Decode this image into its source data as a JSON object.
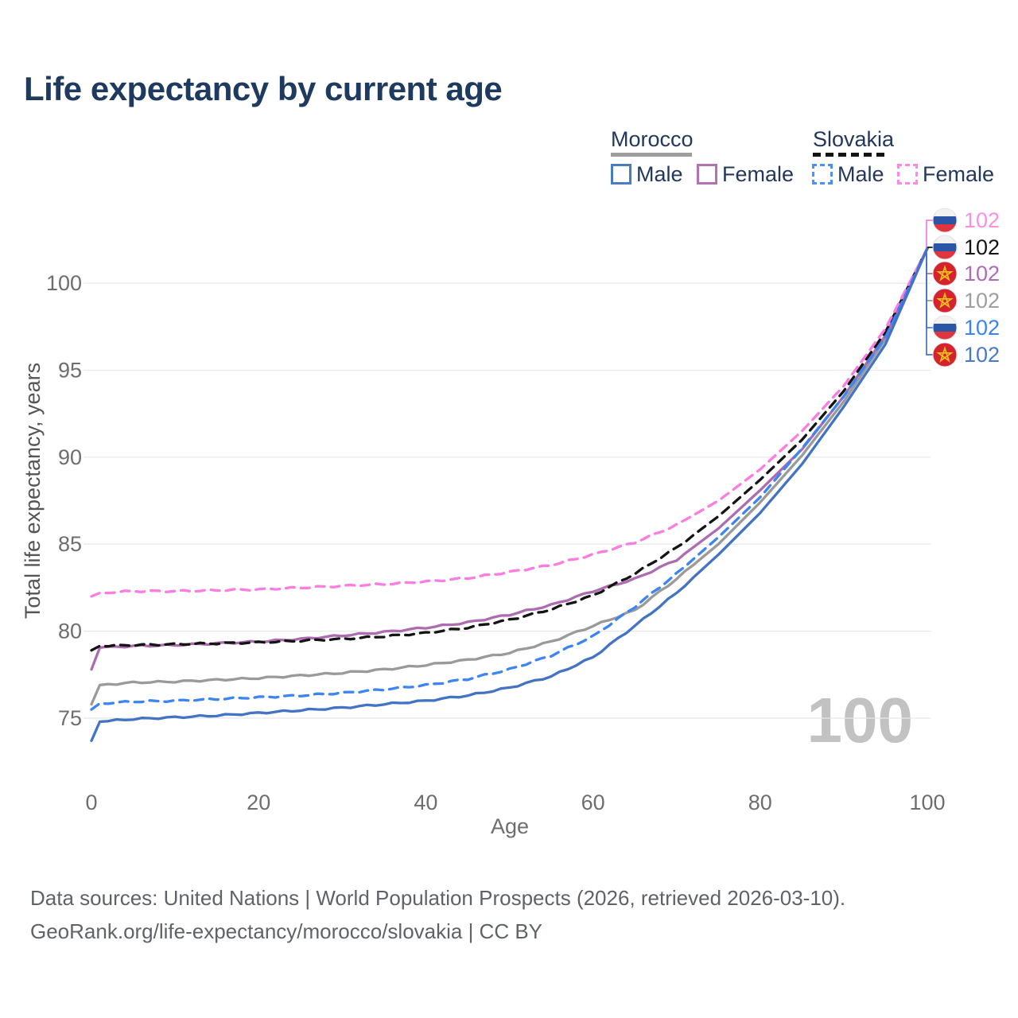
{
  "title": "Life expectancy by current age",
  "legend": {
    "groups": [
      {
        "label": "Morocco",
        "line_style": "solid",
        "swatch_color": "#9e9e9e",
        "items": [
          {
            "label": "Male",
            "color": "#4a7cc0",
            "dashed": false
          },
          {
            "label": "Female",
            "color": "#b272b4",
            "dashed": false
          }
        ]
      },
      {
        "label": "Slovakia",
        "line_style": "dashed",
        "swatch_color": "#141414",
        "items": [
          {
            "label": "Male",
            "color": "#4a90f5",
            "dashed": true
          },
          {
            "label": "Female",
            "color": "#fb8ae0",
            "dashed": true
          }
        ]
      }
    ]
  },
  "watermark_age": "100",
  "chart_data": {
    "type": "line",
    "title": "Life expectancy by current age",
    "xlabel": "Age",
    "ylabel": "Total life expectancy, years",
    "xlim": [
      0,
      100
    ],
    "ylim": [
      73,
      103
    ],
    "x_ticks": [
      0,
      20,
      40,
      60,
      80,
      100
    ],
    "y_ticks": [
      75,
      80,
      85,
      90,
      95,
      100
    ],
    "grid": "horizontal",
    "legend_position": "top-right",
    "x": [
      0,
      1,
      5,
      10,
      15,
      20,
      25,
      30,
      35,
      40,
      45,
      50,
      55,
      60,
      65,
      70,
      75,
      80,
      85,
      90,
      95,
      100
    ],
    "series": [
      {
        "name": "Slovakia Female",
        "country": "Slovakia",
        "sex": "Female",
        "color": "#fa7de1",
        "dash": true,
        "end_value": 102,
        "values": [
          82.0,
          82.2,
          82.3,
          82.3,
          82.35,
          82.4,
          82.5,
          82.6,
          82.7,
          82.85,
          83.05,
          83.4,
          83.8,
          84.4,
          85.1,
          86.1,
          87.5,
          89.3,
          91.5,
          94.1,
          97.4,
          102
        ]
      },
      {
        "name": "Slovakia Both sexes",
        "country": "Slovakia",
        "sex": "Both",
        "color": "#141414",
        "dash": true,
        "end_value": 102,
        "values": [
          78.9,
          79.15,
          79.2,
          79.25,
          79.3,
          79.35,
          79.45,
          79.55,
          79.7,
          79.9,
          80.2,
          80.65,
          81.25,
          82.05,
          83.3,
          84.8,
          86.6,
          88.7,
          91.0,
          93.8,
          97.2,
          102
        ]
      },
      {
        "name": "Morocco Female",
        "country": "Morocco",
        "sex": "Female",
        "color": "#ae6cb0",
        "dash": false,
        "end_value": 102,
        "values": [
          77.8,
          79.05,
          79.15,
          79.2,
          79.3,
          79.4,
          79.55,
          79.75,
          79.95,
          80.2,
          80.5,
          80.95,
          81.5,
          82.3,
          83.0,
          84.1,
          85.9,
          88.1,
          90.45,
          93.5,
          97.0,
          102
        ]
      },
      {
        "name": "Morocco Both sexes",
        "country": "Morocco",
        "sex": "Both",
        "color": "#9a9a9a",
        "dash": false,
        "end_value": 102,
        "values": [
          75.8,
          76.9,
          77.05,
          77.1,
          77.2,
          77.3,
          77.45,
          77.6,
          77.8,
          78.05,
          78.35,
          78.75,
          79.4,
          80.3,
          81.2,
          83.0,
          85.0,
          87.4,
          90.1,
          93.2,
          96.8,
          102
        ]
      },
      {
        "name": "Slovakia Male",
        "country": "Slovakia",
        "sex": "Male",
        "color": "#3d85f2",
        "dash": true,
        "end_value": 102,
        "values": [
          75.5,
          75.85,
          75.95,
          76.0,
          76.1,
          76.2,
          76.3,
          76.45,
          76.65,
          76.9,
          77.25,
          77.8,
          78.6,
          79.7,
          81.4,
          83.3,
          85.4,
          87.7,
          90.5,
          93.5,
          96.9,
          102
        ]
      },
      {
        "name": "Morocco Male",
        "country": "Morocco",
        "sex": "Male",
        "color": "#4273c4",
        "dash": false,
        "end_value": 102,
        "values": [
          73.7,
          74.8,
          74.95,
          75.05,
          75.15,
          75.3,
          75.45,
          75.6,
          75.8,
          76.0,
          76.3,
          76.75,
          77.4,
          78.5,
          80.3,
          82.2,
          84.4,
          86.8,
          89.6,
          92.9,
          96.5,
          102
        ]
      }
    ]
  },
  "end_labels": [
    {
      "flag": "slovakia",
      "series": "Slovakia Female",
      "value": "102",
      "color": "#fb8fe4"
    },
    {
      "flag": "slovakia",
      "series": "Slovakia Both sexes",
      "value": "102",
      "color": "#141414"
    },
    {
      "flag": "morocco",
      "series": "Morocco Female",
      "value": "102",
      "color": "#ad6cb5"
    },
    {
      "flag": "morocco",
      "series": "Morocco Both sexes",
      "value": "102",
      "color": "#9e9e9e"
    },
    {
      "flag": "slovakia",
      "series": "Slovakia Male",
      "value": "102",
      "color": "#3b82f6"
    },
    {
      "flag": "morocco",
      "series": "Morocco Male",
      "value": "102",
      "color": "#4a79cc"
    }
  ],
  "footer": {
    "line1": "Data sources: United Nations | World Population Prospects (2026, retrieved 2026-03-10).",
    "line2": "GeoRank.org/life-expectancy/morocco/slovakia | CC BY"
  }
}
